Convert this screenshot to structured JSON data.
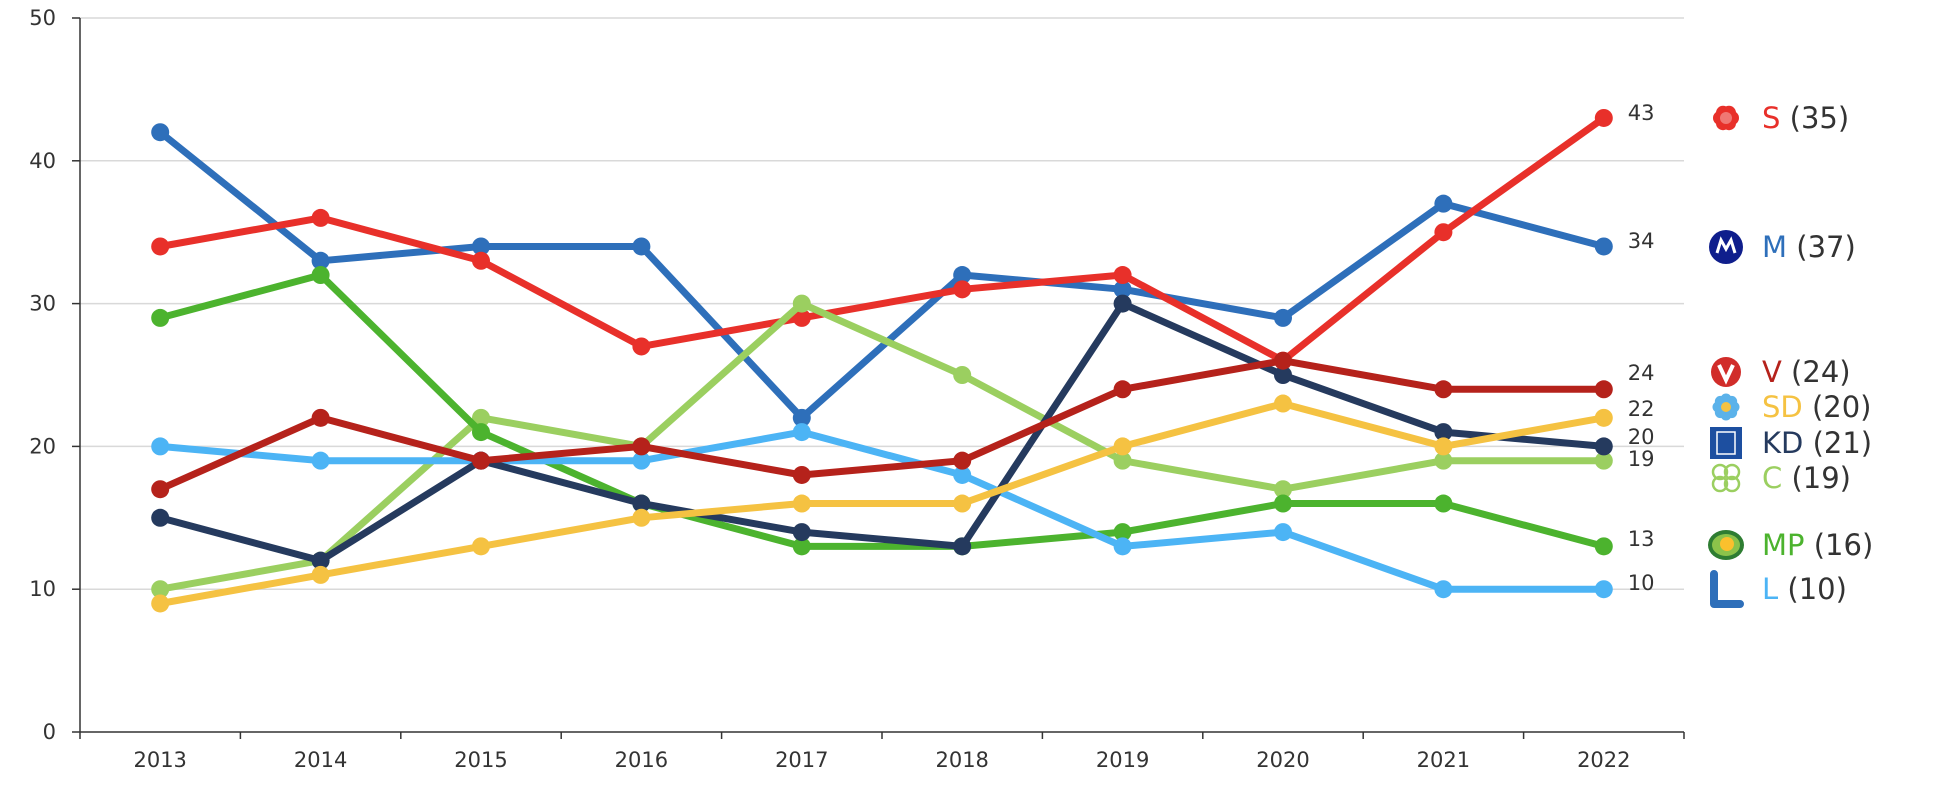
{
  "chart_data": {
    "type": "line",
    "title": "",
    "xlabel": "",
    "ylabel": "",
    "x": [
      "2013",
      "2014",
      "2015",
      "2016",
      "2017",
      "2018",
      "2019",
      "2020",
      "2021",
      "2022"
    ],
    "ylim": [
      0,
      50
    ],
    "yticks": [
      "0",
      "10",
      "20",
      "30",
      "40",
      "50"
    ],
    "grid": true,
    "legend_position": "right",
    "series": [
      {
        "name": "M",
        "count": "(37)",
        "color": "#2E6FBA",
        "icon": "moderaterna-logo-icon",
        "values": [
          42,
          33,
          34,
          34,
          22,
          32,
          31,
          29,
          37,
          34
        ],
        "end_label": "34"
      },
      {
        "name": "S",
        "count": "(35)",
        "color": "#E8302A",
        "icon": "social-democrats-rose-icon",
        "values": [
          34,
          36,
          33,
          27,
          29,
          31,
          32,
          26,
          35,
          43
        ],
        "end_label": "43"
      },
      {
        "name": "C",
        "count": "(19)",
        "color": "#9BCF60",
        "icon": "clover-icon",
        "values": [
          10,
          12,
          22,
          20,
          30,
          25,
          19,
          17,
          19,
          19
        ],
        "end_label": "19"
      },
      {
        "name": "MP",
        "count": "(16)",
        "color": "#4CB32E",
        "icon": "dandelion-leaf-icon",
        "values": [
          29,
          32,
          21,
          16,
          13,
          13,
          14,
          16,
          16,
          13
        ],
        "end_label": "13"
      },
      {
        "name": "L",
        "count": "(10)",
        "color": "#4CB4F5",
        "icon": "liberalerna-l-icon",
        "values": [
          20,
          19,
          19,
          19,
          21,
          18,
          13,
          14,
          10,
          10
        ],
        "end_label": "10"
      },
      {
        "name": "KD",
        "count": "(21)",
        "color": "#253A5E",
        "icon": "kd-logo-icon",
        "values": [
          15,
          12,
          19,
          16,
          14,
          13,
          30,
          25,
          21,
          20
        ],
        "end_label": "20"
      },
      {
        "name": "SD",
        "count": "(20)",
        "color": "#F5C242",
        "icon": "blue-flower-icon",
        "values": [
          9,
          11,
          13,
          15,
          16,
          16,
          20,
          23,
          20,
          22
        ],
        "end_label": "22"
      },
      {
        "name": "V",
        "count": "(24)",
        "color": "#B5221B",
        "icon": "v-badge-icon",
        "values": [
          17,
          22,
          19,
          20,
          18,
          19,
          24,
          26,
          24,
          24
        ],
        "end_label": "24"
      }
    ],
    "legend_order": [
      "S",
      "M",
      "V",
      "SD",
      "KD",
      "C",
      "MP",
      "L"
    ]
  }
}
